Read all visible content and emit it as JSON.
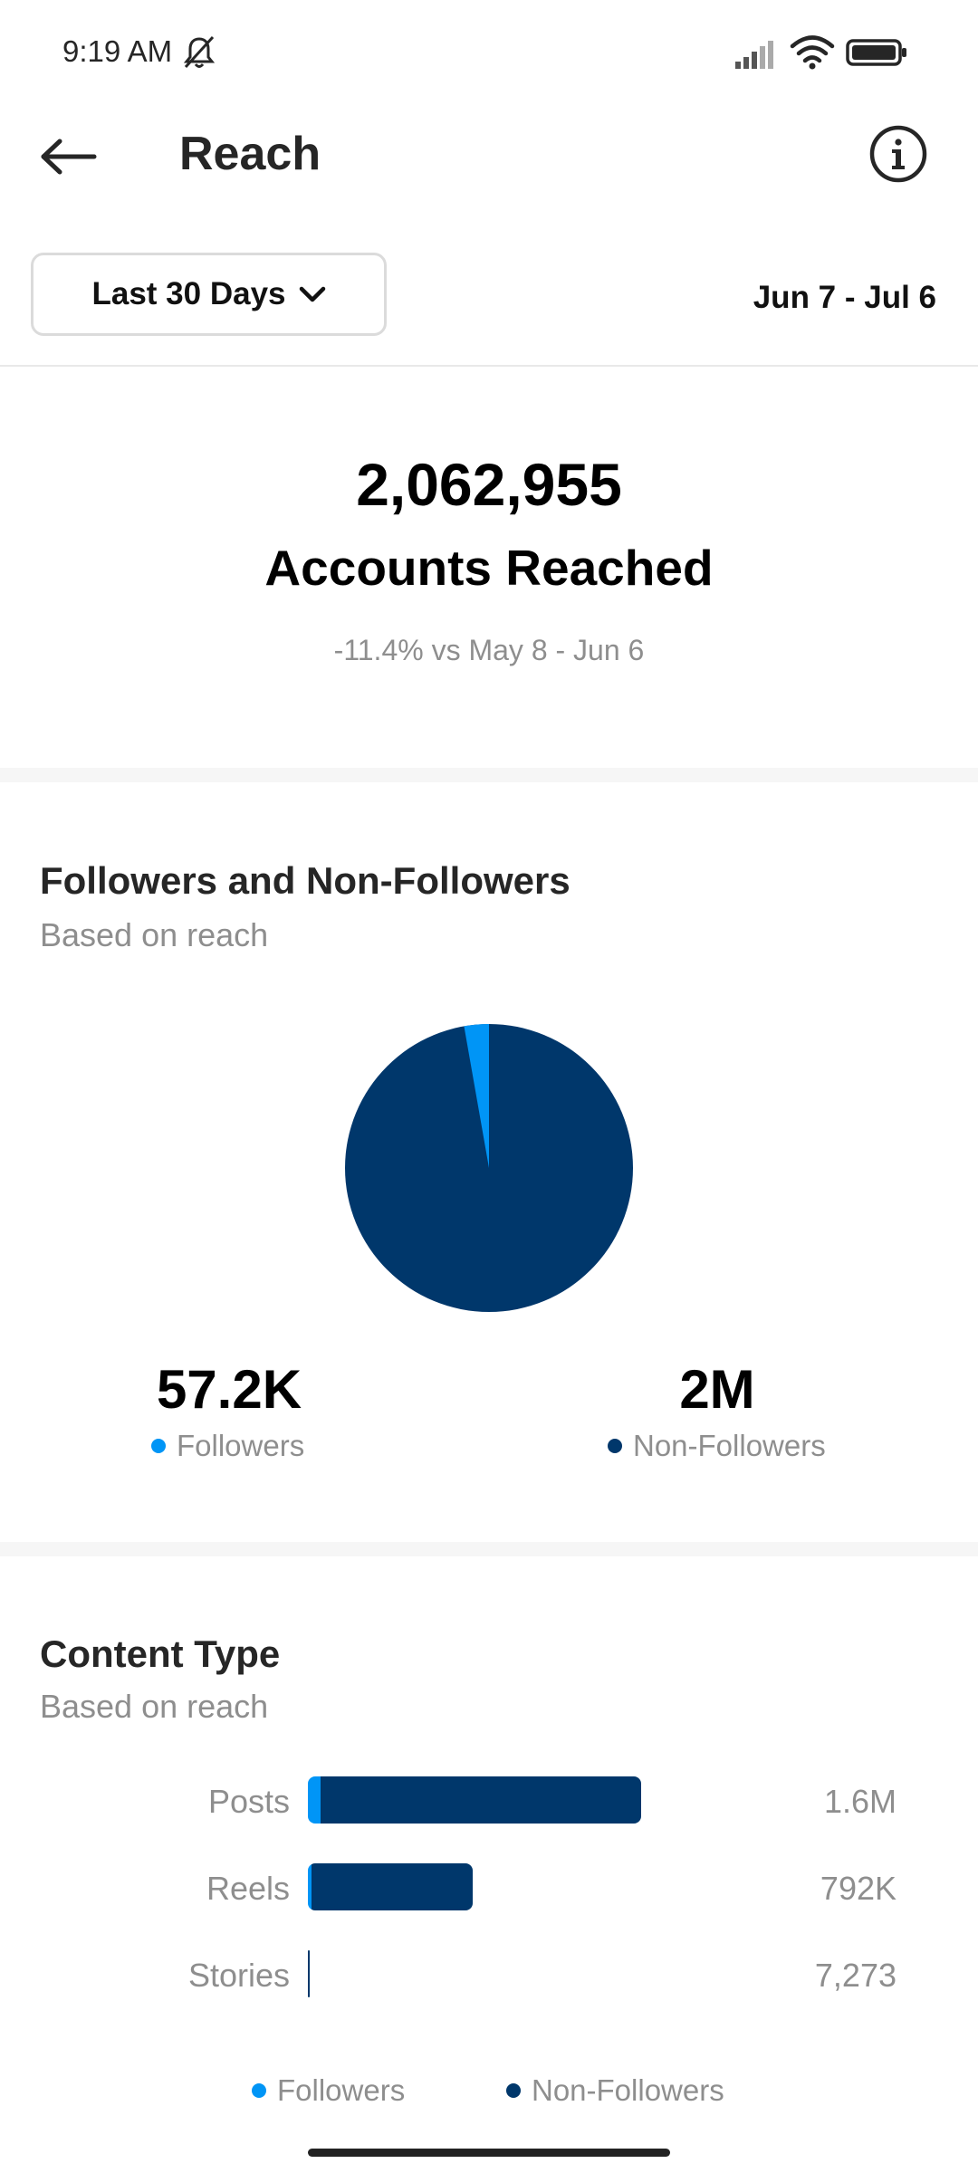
{
  "status_bar": {
    "time": "9:19 AM"
  },
  "header": {
    "title": "Reach"
  },
  "filters": {
    "range_label": "Last 30 Days",
    "date_range": "Jun 7 - Jul 6"
  },
  "summary": {
    "total": "2,062,955",
    "label": "Accounts Reached",
    "comparison": "-11.4% vs May 8 - Jun 6"
  },
  "followers_section": {
    "title": "Followers and Non-Followers",
    "subtitle": "Based on reach",
    "followers_value": "57.2K",
    "followers_label": "Followers",
    "nonfollowers_value": "2M",
    "nonfollowers_label": "Non-Followers"
  },
  "content_section": {
    "title": "Content Type",
    "subtitle": "Based on reach",
    "legend_followers": "Followers",
    "legend_nonfollowers": "Non-Followers"
  },
  "colors": {
    "followers": "#0095f6",
    "non_followers": "#00376b"
  },
  "chart_data": [
    {
      "type": "pie",
      "categories": [
        "Followers",
        "Non-Followers"
      ],
      "values": [
        57200,
        2005755
      ]
    },
    {
      "type": "bar",
      "categories": [
        "Posts",
        "Reels",
        "Stories"
      ],
      "value_labels": [
        "1.6M",
        "792K",
        "7,273"
      ],
      "values": [
        1600000,
        792000,
        7273
      ],
      "series": [
        {
          "name": "Followers",
          "values": [
            60000,
            10000,
            0
          ]
        },
        {
          "name": "Non-Followers",
          "values": [
            1540000,
            782000,
            7273
          ]
        }
      ]
    }
  ]
}
